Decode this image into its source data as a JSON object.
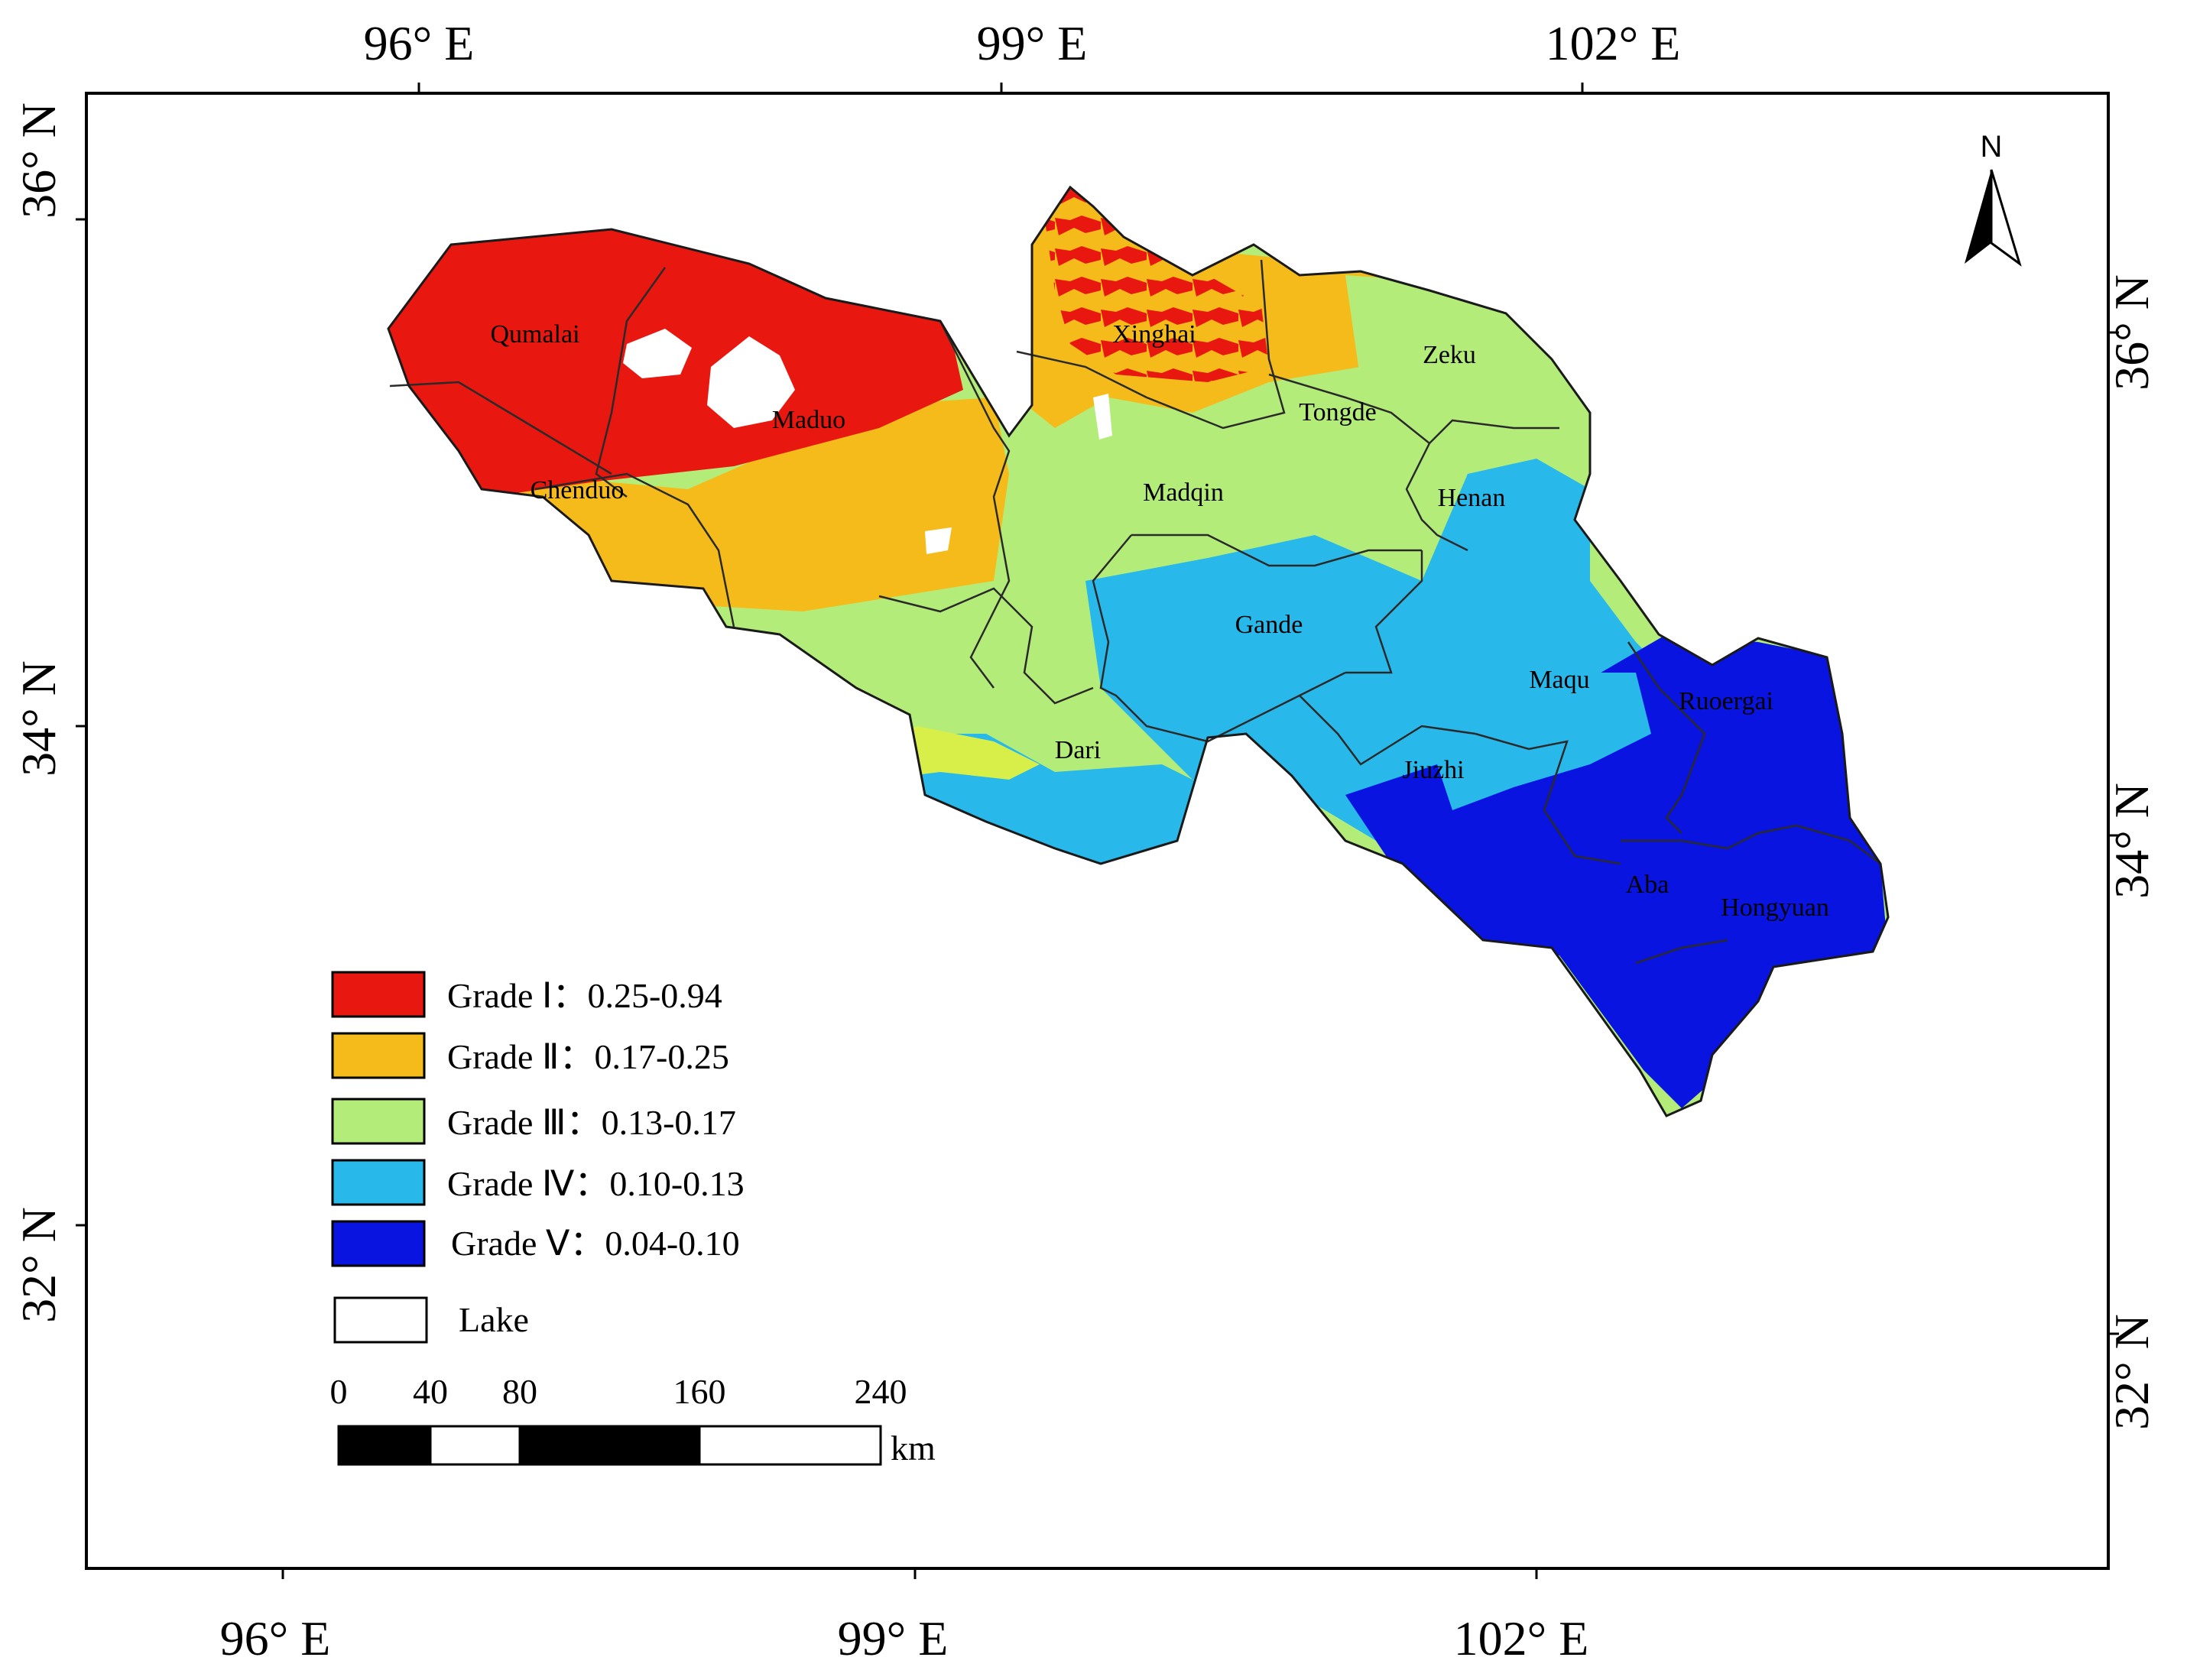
{
  "top_lon_labels": [
    "96° E",
    "99° E",
    "102° E"
  ],
  "bottom_lon_labels": [
    "96° E",
    "99° E",
    "102° E"
  ],
  "left_lat_labels": [
    "36° N",
    "34° N",
    "32° N"
  ],
  "right_lat_labels": [
    "36° N",
    "34° N",
    "32° N"
  ],
  "north_arrow": {
    "label": "N",
    "icon": "north-arrow-icon"
  },
  "counties": [
    "Qumalai",
    "Maduo",
    "Chenduo",
    "Xinghai",
    "Zeku",
    "Tongde",
    "Madqin",
    "Henan",
    "Gande",
    "Maqu",
    "Ruoergai",
    "Dari",
    "Jiuzhi",
    "Aba",
    "Hongyuan"
  ],
  "legend": [
    {
      "label": "Grade Ⅰ：0.25-0.94",
      "color": "#e8170f"
    },
    {
      "label": "Grade Ⅱ：0.17-0.25",
      "color": "#f5bb1a"
    },
    {
      "label": "Grade Ⅲ：0.13-0.17",
      "color": "#b4ec7a"
    },
    {
      "label": "Grade Ⅳ：0.10-0.13",
      "color": "#29b8ea"
    },
    {
      "label": "Grade Ⅴ：0.04-0.10",
      "color": "#0a14e0"
    },
    {
      "label": "Lake",
      "color": "#ffffff"
    }
  ],
  "scale_bar": {
    "ticks": [
      "0",
      "40",
      "80",
      "160",
      "240"
    ],
    "unit": "km"
  }
}
